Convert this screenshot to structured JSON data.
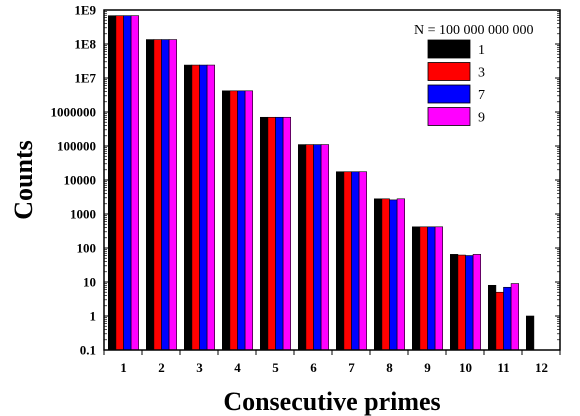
{
  "chart_data": {
    "type": "bar",
    "title": "",
    "xlabel": "Consecutive primes",
    "ylabel": "Counts",
    "yscale": "log",
    "ylim": [
      0.1,
      1000000000
    ],
    "y_tick_labels": [
      "0.1",
      "1",
      "10",
      "100",
      "1000",
      "10000",
      "100000",
      "1000000",
      "1E7",
      "1E8",
      "1E9"
    ],
    "categories": [
      "1",
      "2",
      "3",
      "4",
      "5",
      "6",
      "7",
      "8",
      "9",
      "10",
      "11",
      "12"
    ],
    "legend_title": "N = 100 000 000 000",
    "legend_position": "top-right",
    "series": [
      {
        "name": "1",
        "color": "#000000",
        "values": [
          680000000,
          135000000,
          24000000,
          4200000,
          700000,
          110000,
          17500,
          2800,
          420,
          65,
          8,
          1
        ]
      },
      {
        "name": "3",
        "color": "#ff0000",
        "values": [
          680000000,
          135000000,
          24000000,
          4200000,
          700000,
          110000,
          17500,
          2800,
          420,
          62,
          5,
          null
        ]
      },
      {
        "name": "7",
        "color": "#0000ff",
        "values": [
          680000000,
          135000000,
          24000000,
          4200000,
          700000,
          110000,
          17500,
          2600,
          420,
          60,
          7,
          null
        ]
      },
      {
        "name": "9",
        "color": "#ff00ff",
        "values": [
          680000000,
          135000000,
          24000000,
          4200000,
          700000,
          110000,
          17500,
          2800,
          420,
          65,
          9,
          null
        ]
      }
    ]
  }
}
